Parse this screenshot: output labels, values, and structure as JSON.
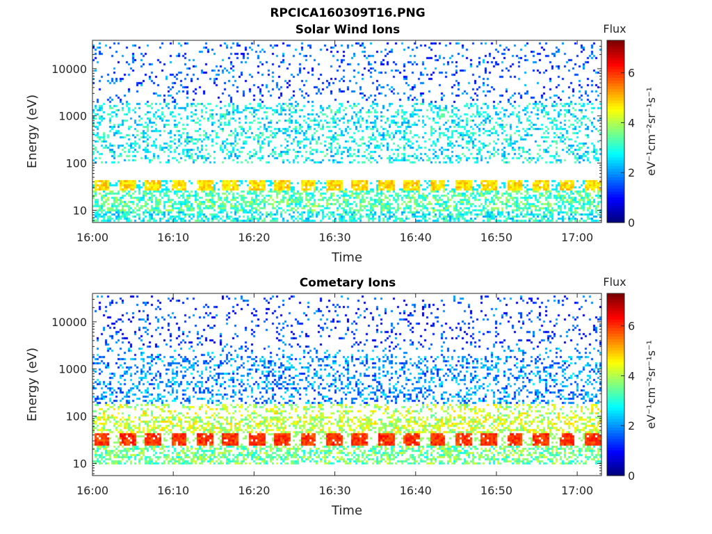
{
  "figure_title": "RPCICA160309T16.PNG",
  "colorbar": {
    "title": "Flux",
    "unit": "eV⁻¹cm⁻²sr⁻¹s⁻¹",
    "range": [
      0,
      7.3
    ],
    "ticks": [
      "0",
      "2",
      "4",
      "6"
    ],
    "colormap": "jet"
  },
  "chart_data": [
    {
      "type": "heatmap",
      "title": "Solar Wind Ions",
      "xlabel": "Time",
      "ylabel": "Energy (eV)",
      "yscale": "log",
      "ylim": [
        5.5,
        40000
      ],
      "xlim": [
        "16:00",
        "17:03"
      ],
      "x_ticks": [
        "16:00",
        "16:10",
        "16:20",
        "16:30",
        "16:40",
        "16:50",
        "17:00"
      ],
      "y_ticks": [
        "10",
        "100",
        "1000",
        "10000"
      ],
      "bands": [
        {
          "energy_range": [
            28,
            45
          ],
          "flux": 4.8,
          "period_minutes": 3.2,
          "note": "periodic bright band"
        },
        {
          "energy_range": [
            10,
            28
          ],
          "flux": 3.0
        },
        {
          "energy_range": [
            6,
            10
          ],
          "flux": 2.5
        },
        {
          "energy_range": [
            100,
            2000
          ],
          "flux": 2.4
        },
        {
          "energy_range": [
            2000,
            40000
          ],
          "flux": 1.2
        }
      ]
    },
    {
      "type": "heatmap",
      "title": "Cometary Ions",
      "xlabel": "Time",
      "ylabel": "Energy (eV)",
      "yscale": "log",
      "ylim": [
        5.5,
        40000
      ],
      "xlim": [
        "16:00",
        "17:03"
      ],
      "x_ticks": [
        "16:00",
        "16:10",
        "16:20",
        "16:30",
        "16:40",
        "16:50",
        "17:00"
      ],
      "y_ticks": [
        "10",
        "100",
        "1000",
        "10000"
      ],
      "bands": [
        {
          "energy_range": [
            25,
            45
          ],
          "flux": 6.0,
          "period_minutes": 3.2,
          "note": "periodic intense band"
        },
        {
          "energy_range": [
            45,
            200
          ],
          "flux": 3.8,
          "note": "dispersive streaks"
        },
        {
          "energy_range": [
            10,
            25
          ],
          "flux": 3.2
        },
        {
          "energy_range": [
            200,
            3000
          ],
          "flux": 1.6
        },
        {
          "energy_range": [
            3000,
            40000
          ],
          "flux": 1.0
        }
      ]
    }
  ]
}
